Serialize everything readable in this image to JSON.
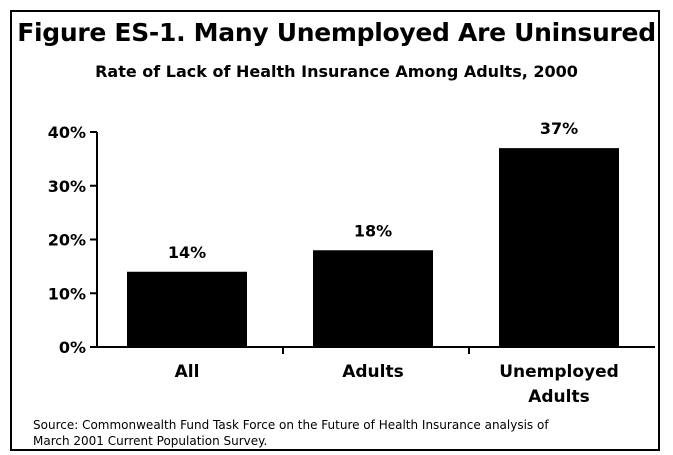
{
  "chart_data": {
    "type": "bar",
    "title": "Figure ES-1. Many Unemployed Are Uninsured",
    "subtitle": "Rate of Lack of Health Insurance Among Adults, 2000",
    "categories": [
      [
        "All"
      ],
      [
        "Adults"
      ],
      [
        "Unemployed",
        "Adults"
      ]
    ],
    "values": [
      14,
      18,
      37
    ],
    "data_labels": [
      "14%",
      "18%",
      "37%"
    ],
    "yticks": [
      "0%",
      "10%",
      "20%",
      "30%",
      "40%"
    ],
    "ytick_values": [
      0,
      10,
      20,
      30,
      40
    ],
    "ylim": [
      0,
      40
    ],
    "grid": false,
    "bar_color": "#000000"
  },
  "source": {
    "line1": "Source: Commonwealth Fund Task Force on the Future of Health Insurance analysis of",
    "line2": "March 2001 Current Population Survey."
  }
}
